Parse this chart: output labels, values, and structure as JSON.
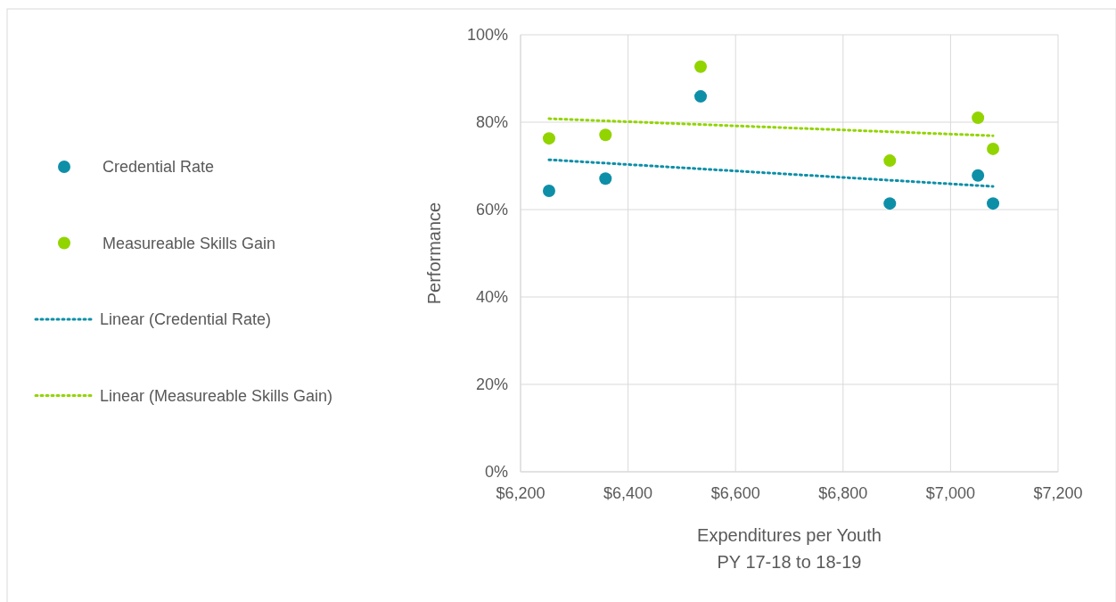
{
  "chart_data": {
    "type": "scatter",
    "xlabel": "Expenditures per Youth\nPY 17-18 to 18-19",
    "ylabel": "Performance",
    "xlim": [
      6200,
      7200
    ],
    "xticks": [
      {
        "value": 6200,
        "label": "$6,200"
      },
      {
        "value": 6400,
        "label": "$6,400"
      },
      {
        "value": 6600,
        "label": "$6,600"
      },
      {
        "value": 6800,
        "label": "$6,800"
      },
      {
        "value": 7000,
        "label": "$7,000"
      },
      {
        "value": 7200,
        "label": "$7,200"
      }
    ],
    "ylim": [
      0,
      100
    ],
    "yticks": [
      {
        "value": 0,
        "label": "0%"
      },
      {
        "value": 20,
        "label": "20%"
      },
      {
        "value": 40,
        "label": "40%"
      },
      {
        "value": 60,
        "label": "60%"
      },
      {
        "value": 80,
        "label": "80%"
      },
      {
        "value": 100,
        "label": "100%"
      }
    ],
    "grid": true,
    "legend": "left",
    "series": [
      {
        "name": "Credential Rate",
        "marker": "circle",
        "color": "#0e8fa8",
        "x": [
          6253,
          6358,
          6535,
          6887,
          7051,
          7079
        ],
        "values": [
          64.3,
          67.1,
          85.9,
          61.4,
          67.8,
          61.4
        ]
      },
      {
        "name": "Measureable Skills Gain",
        "marker": "circle",
        "color": "#92d400",
        "x": [
          6253,
          6358,
          6535,
          6887,
          7051,
          7079
        ],
        "values": [
          76.3,
          77.1,
          92.7,
          71.2,
          81.0,
          73.9
        ]
      },
      {
        "name": "Linear (Credential Rate)",
        "type": "line",
        "line_style": "dotted",
        "marker": "none",
        "color": "#0e8fa8",
        "x": [
          6253,
          7079
        ],
        "values": [
          71.4,
          65.3
        ]
      },
      {
        "name": "Linear (Measureable Skills Gain)",
        "type": "line",
        "line_style": "dotted",
        "marker": "none",
        "color": "#92d400",
        "x": [
          6253,
          7079
        ],
        "values": [
          80.8,
          76.9
        ]
      }
    ]
  }
}
